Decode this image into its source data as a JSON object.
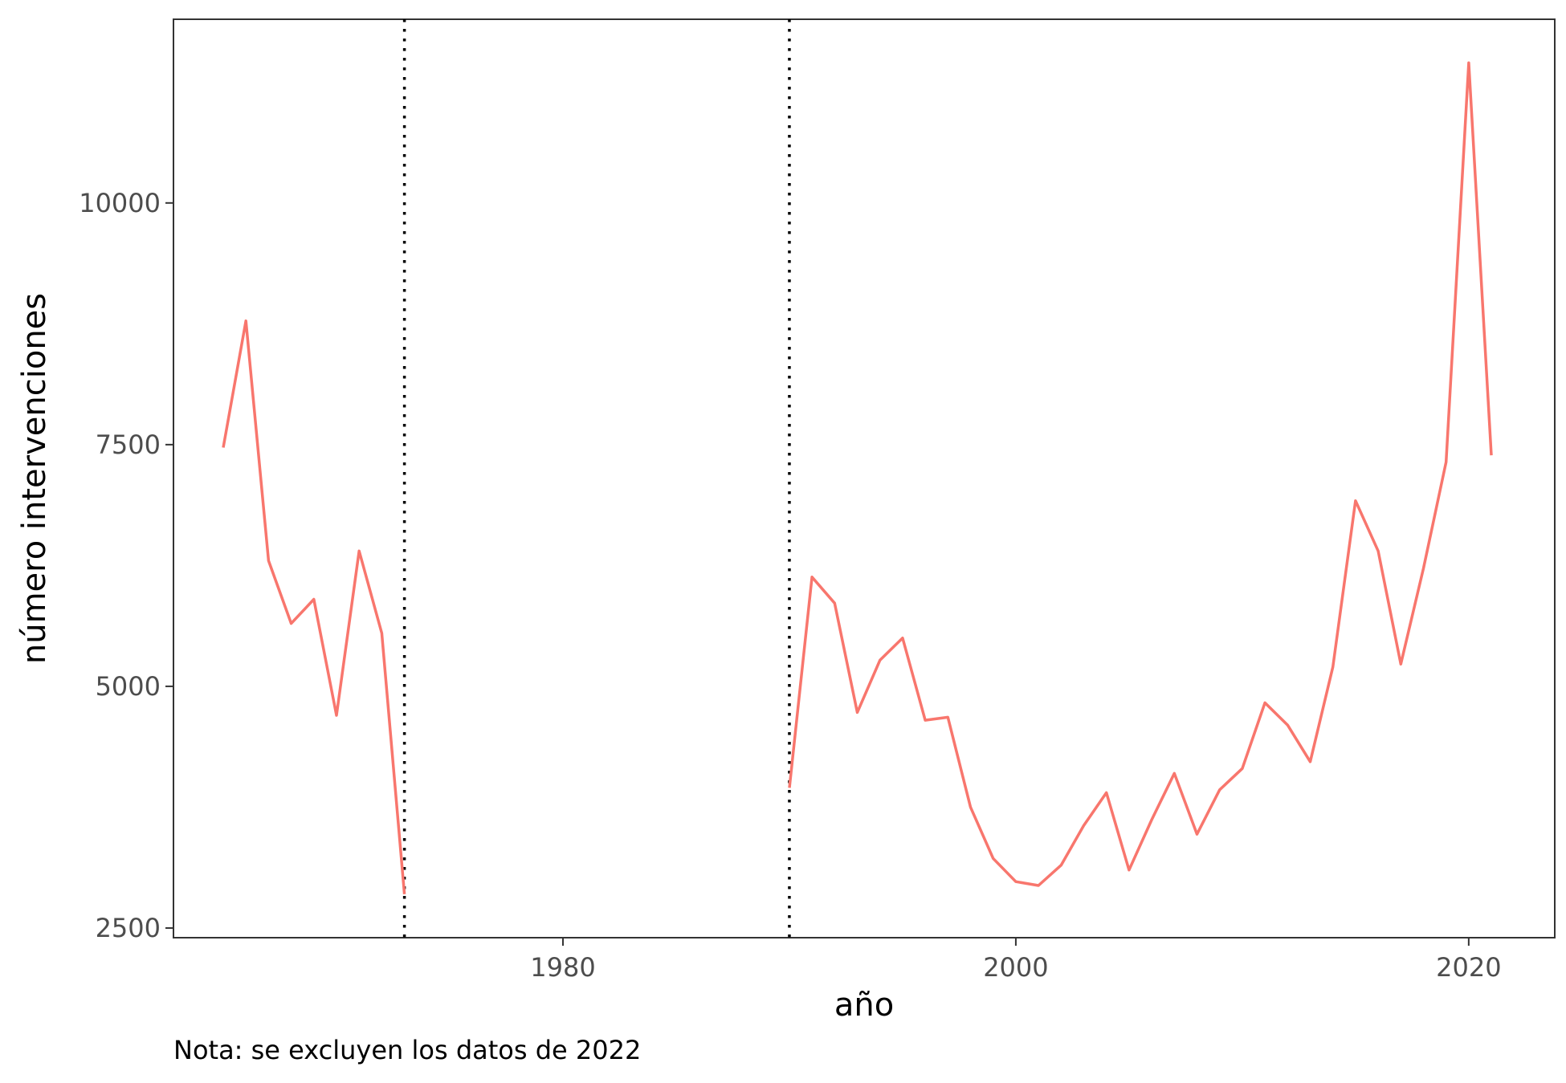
{
  "chart_data": {
    "type": "line",
    "xlabel": "año",
    "ylabel": "número intervenciones",
    "caption": "Nota: se excluyen los datos de 2022",
    "xlim": [
      1962.8,
      2023.8
    ],
    "ylim": [
      2400,
      11900
    ],
    "xticks": [
      1980,
      2000,
      2020
    ],
    "yticks": [
      2500,
      5000,
      7500,
      10000
    ],
    "grid": false,
    "line_color": "#F8766D",
    "vlines": [
      1973,
      1990
    ],
    "series": [
      {
        "segments": [
          {
            "x": [
              1965,
              1966,
              1967,
              1968,
              1969,
              1970,
              1971,
              1972,
              1973
            ],
            "y": [
              7470,
              8780,
              6300,
              5650,
              5900,
              4700,
              6400,
              5550,
              2850
            ]
          },
          {
            "x": [
              1990,
              1991,
              1992,
              1993,
              1994,
              1995,
              1996,
              1997,
              1998,
              1999,
              2000,
              2001,
              2002,
              2003,
              2004,
              2005,
              2006,
              2007,
              2008,
              2009,
              2010,
              2011,
              2012,
              2013,
              2014,
              2015,
              2016,
              2017,
              2018,
              2019,
              2020,
              2021
            ],
            "y": [
              3950,
              6130,
              5860,
              4730,
              5270,
              5500,
              4650,
              4680,
              3750,
              3220,
              2980,
              2940,
              3150,
              3560,
              3900,
              3100,
              3620,
              4100,
              3470,
              3930,
              4150,
              4830,
              4600,
              4220,
              5200,
              6920,
              6400,
              5230,
              6220,
              7320,
              11450,
              7390
            ]
          }
        ]
      }
    ]
  }
}
